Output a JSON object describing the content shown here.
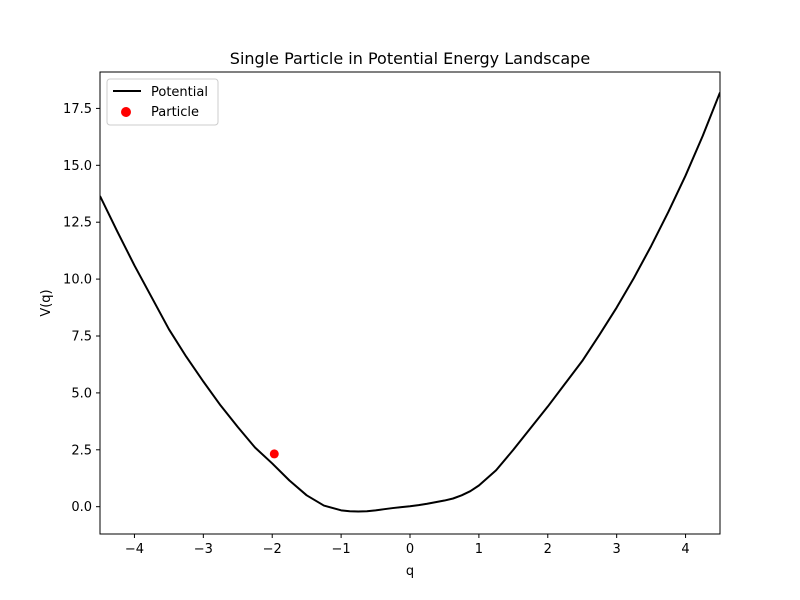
{
  "chart_data": {
    "type": "line",
    "title": "Single Particle in Potential Energy Landscape",
    "xlabel": "q",
    "ylabel": "V(q)",
    "xlim": [
      -4.5,
      4.5
    ],
    "ylim": [
      -1.2,
      19.1
    ],
    "x_ticks": [
      -4,
      -3,
      -2,
      -1,
      0,
      1,
      2,
      3,
      4
    ],
    "x_tick_labels": [
      "−4",
      "−3",
      "−2",
      "−1",
      "0",
      "1",
      "2",
      "3",
      "4"
    ],
    "y_ticks": [
      0.0,
      2.5,
      5.0,
      7.5,
      10.0,
      12.5,
      15.0,
      17.5
    ],
    "y_tick_labels": [
      "0.0",
      "2.5",
      "5.0",
      "7.5",
      "10.0",
      "12.5",
      "15.0",
      "17.5"
    ],
    "grid": false,
    "legend_position": "top-left",
    "series": [
      {
        "name": "Potential",
        "kind": "line",
        "color": "#000000",
        "x": [
          -4.5,
          -4.25,
          -4.0,
          -3.75,
          -3.5,
          -3.25,
          -3.0,
          -2.75,
          -2.5,
          -2.25,
          -2.0,
          -1.75,
          -1.5,
          -1.25,
          -1.0,
          -0.875,
          -0.75,
          -0.625,
          -0.5,
          -0.375,
          -0.25,
          -0.125,
          0.0,
          0.125,
          0.25,
          0.375,
          0.5,
          0.625,
          0.75,
          0.875,
          1.0,
          1.25,
          1.5,
          1.75,
          2.0,
          2.25,
          2.5,
          2.75,
          3.0,
          3.25,
          3.5,
          3.75,
          4.0,
          4.25,
          4.5
        ],
        "y": [
          13.65,
          12.1,
          10.6,
          9.2,
          7.8,
          6.6,
          5.5,
          4.45,
          3.5,
          2.6,
          1.9,
          1.15,
          0.5,
          0.05,
          -0.16,
          -0.2,
          -0.21,
          -0.2,
          -0.16,
          -0.11,
          -0.06,
          -0.02,
          0.02,
          0.07,
          0.13,
          0.2,
          0.27,
          0.36,
          0.5,
          0.68,
          0.93,
          1.6,
          2.5,
          3.45,
          4.4,
          5.4,
          6.4,
          7.55,
          8.75,
          10.05,
          11.45,
          12.95,
          14.55,
          16.3,
          18.2
        ]
      },
      {
        "name": "Particle",
        "kind": "scatter",
        "color": "#ff0000",
        "x": [
          -1.97
        ],
        "y": [
          2.32
        ]
      }
    ]
  }
}
